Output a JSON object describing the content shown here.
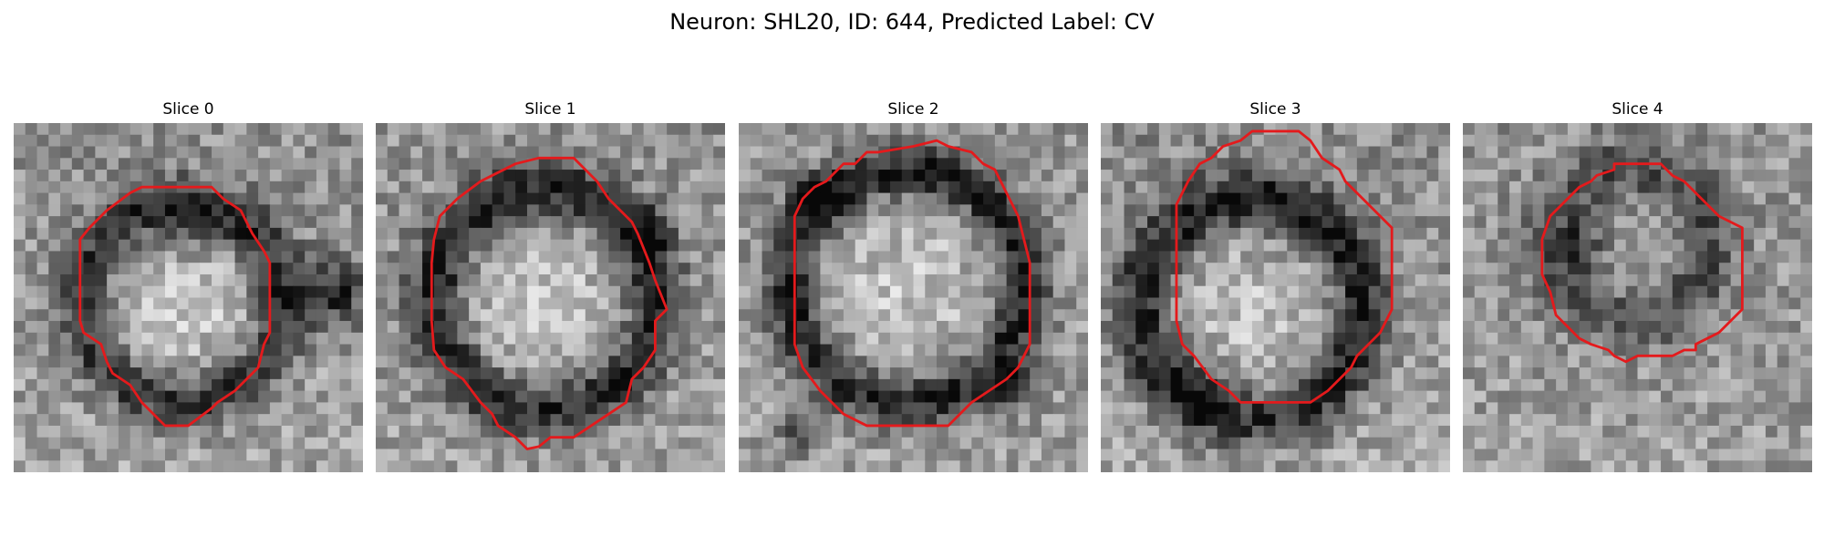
{
  "title": "Neuron: SHL20, ID: 644, Predicted Label: CV",
  "slices": [
    {
      "label": "Slice 0"
    },
    {
      "label": "Slice 1"
    },
    {
      "label": "Slice 2"
    },
    {
      "label": "Slice 3"
    },
    {
      "label": "Slice 4"
    }
  ],
  "contour_color": "#e41a1c",
  "colormap": "grayscale"
}
